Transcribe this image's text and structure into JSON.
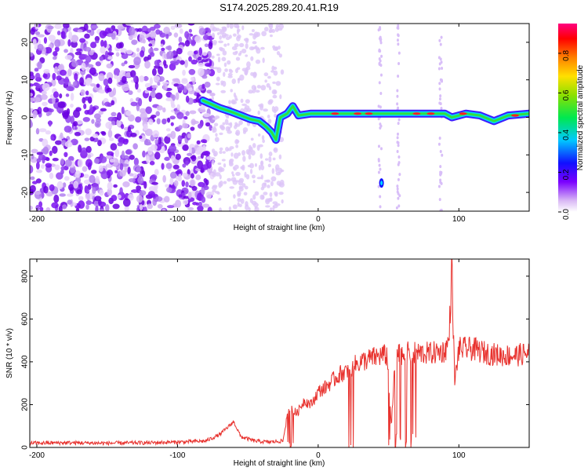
{
  "figure_title": "S174.2025.289.20.41.R19",
  "chart_data": [
    {
      "type": "heatmap",
      "title": "S174.2025.289.20.41.R19",
      "xlabel": "Height of straight line (km)",
      "ylabel": "Frequency (Hz)",
      "xlim": [
        -205,
        150
      ],
      "ylim": [
        -25,
        25
      ],
      "xticks": [
        -200,
        -100,
        0,
        100
      ],
      "yticks": [
        -20,
        -10,
        0,
        10,
        20
      ],
      "grid": false,
      "ridge_frequency": {
        "x": [
          -82,
          -76,
          -70,
          -62,
          -55,
          -48,
          -42,
          -37,
          -33,
          -30,
          -27,
          -22,
          -18,
          -14,
          -5,
          10,
          30,
          40,
          48,
          60,
          75,
          90,
          95,
          105,
          115,
          125,
          135,
          150
        ],
        "y": [
          4.5,
          3.5,
          2.5,
          1.5,
          0.5,
          -0.5,
          -1,
          -2.5,
          -4,
          -6,
          0,
          1,
          3,
          0.5,
          1,
          1,
          1,
          1,
          1,
          1,
          1,
          1,
          0,
          1,
          0.5,
          -1,
          0.5,
          1
        ]
      },
      "colorbar": {
        "label": "Normalized spectral amplitude",
        "range": [
          0,
          0.95
        ],
        "ticks": [
          0.0,
          0.2,
          0.4,
          0.6,
          0.8
        ]
      }
    },
    {
      "type": "line",
      "xlabel": "Height of straight line (km)",
      "ylabel": "SNR (10 * v/v)",
      "xlim": [
        -205,
        150
      ],
      "ylim": [
        0,
        880
      ],
      "xticks": [
        -200,
        -100,
        0,
        100
      ],
      "yticks": [
        0,
        200,
        400,
        600,
        800
      ],
      "grid": false,
      "series": [
        {
          "color": "#e8322e",
          "x": [
            -205,
            -180,
            -150,
            -120,
            -100,
            -80,
            -70,
            -65,
            -60,
            -55,
            -45,
            -35,
            -25,
            -22,
            -20,
            -15,
            -10,
            -5,
            0,
            5,
            10,
            15,
            20,
            25,
            30,
            35,
            40,
            45,
            49,
            52,
            55,
            60,
            70,
            80,
            90,
            93,
            95,
            97,
            100,
            110,
            120,
            130,
            140,
            150
          ],
          "y": [
            20,
            22,
            20,
            22,
            25,
            30,
            60,
            90,
            120,
            50,
            30,
            25,
            30,
            150,
            180,
            160,
            220,
            200,
            260,
            280,
            310,
            340,
            360,
            380,
            400,
            410,
            420,
            430,
            430,
            100,
            430,
            440,
            440,
            440,
            450,
            500,
            850,
            300,
            460,
            460,
            440,
            430,
            430,
            440
          ]
        }
      ]
    }
  ]
}
